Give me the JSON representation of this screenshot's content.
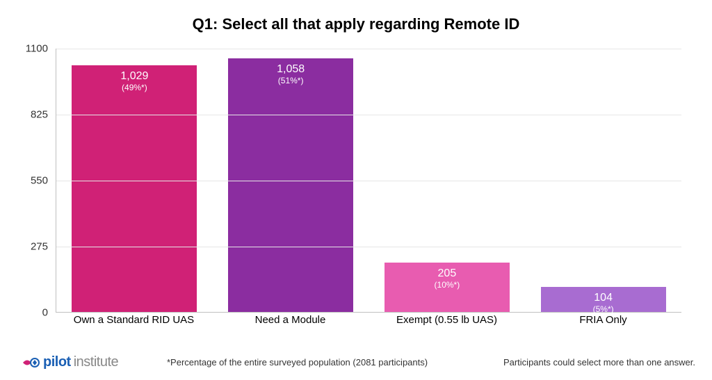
{
  "chart": {
    "type": "bar",
    "title": "Q1: Select all that apply regarding Remote ID",
    "title_fontsize": 22,
    "background_color": "#ffffff",
    "grid_color": "#e6e6e6",
    "axis_color": "#bfbfbf",
    "ylim": [
      0,
      1100
    ],
    "yticks": [
      0,
      275,
      550,
      825,
      1100
    ],
    "bar_width_ratio": 0.8,
    "bars": [
      {
        "category": "Own a Standard RID UAS",
        "value": 1029,
        "value_label": "1,029",
        "pct_label": "(49%*)",
        "color": "#d02176"
      },
      {
        "category": "Need a Module",
        "value": 1058,
        "value_label": "1,058",
        "pct_label": "(51%*)",
        "color": "#8b2da0"
      },
      {
        "category": "Exempt (0.55 lb UAS)",
        "value": 205,
        "value_label": "205",
        "pct_label": "(10%*)",
        "color": "#e85cb0"
      },
      {
        "category": "FRIA Only",
        "value": 104,
        "value_label": "104",
        "pct_label": "(5%*)",
        "color": "#a86cd1"
      }
    ],
    "bar_value_fontsize": 16,
    "bar_pct_fontsize": 12,
    "xtick_fontsize": 15,
    "ytick_fontsize": 15
  },
  "footer": {
    "logo_text_a": "pilot",
    "logo_text_b": "institute",
    "logo_color_a": "#1a5fb4",
    "logo_color_b": "#888888",
    "logo_icon_fill": "#d02176",
    "logo_icon_stroke": "#1a5fb4",
    "note_left": "*Percentage of the entire surveyed population (2081 participants)",
    "note_right": "Participants could select more than one answer.",
    "note_fontsize": 13
  }
}
